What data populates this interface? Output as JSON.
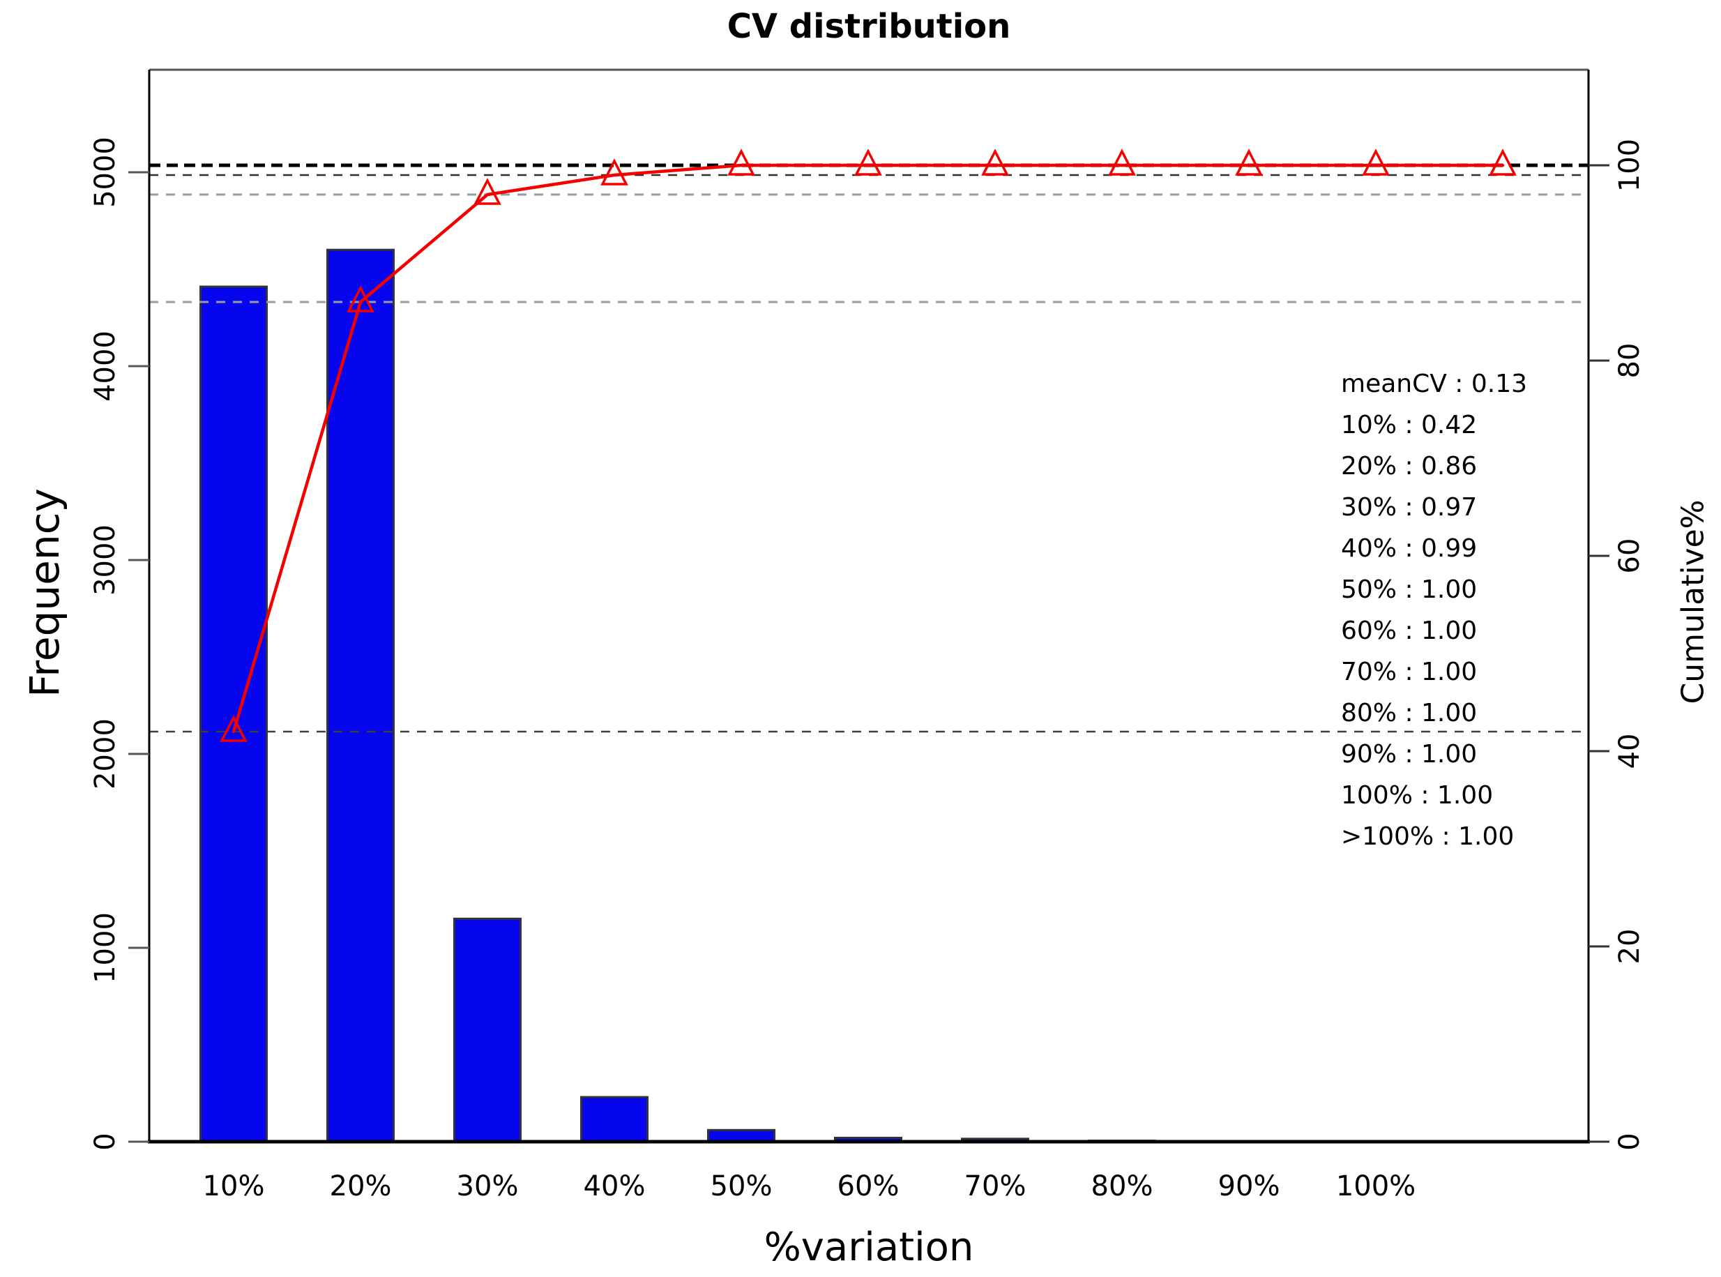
{
  "title": "CV distribution",
  "axes": {
    "x": {
      "label": "%variation",
      "tick_labels": [
        "10%",
        "20%",
        "30%",
        "40%",
        "50%",
        "60%",
        "70%",
        "80%",
        "90%",
        "100%"
      ]
    },
    "y_left": {
      "label": "Frequency",
      "range": [
        0,
        5000
      ],
      "ticks": [
        "0",
        "1000",
        "2000",
        "3000",
        "4000",
        "5000"
      ]
    },
    "y_right": {
      "label": "Cumulative%",
      "range": [
        0,
        100
      ],
      "ticks": [
        "0",
        "20",
        "40",
        "60",
        "80",
        "100"
      ]
    }
  },
  "chart_data": {
    "type": "pareto (bar + cumulative line)",
    "categories": [
      "10%",
      "20%",
      "30%",
      "40%",
      "50%",
      "60%",
      "70%",
      "80%",
      "90%",
      "100%",
      ">100%"
    ],
    "series": [
      {
        "name": "Frequency",
        "type": "bar",
        "color": "#0505ee",
        "values": [
          4410,
          4600,
          1150,
          230,
          60,
          20,
          15,
          5,
          3,
          2,
          2
        ]
      },
      {
        "name": "Cumulative%",
        "type": "line",
        "color": "#f40000",
        "marker": "open-triangle-up",
        "values": [
          42,
          86,
          97,
          99,
          100,
          100,
          100,
          100,
          100,
          100,
          100
        ]
      }
    ],
    "reference_lines": [
      {
        "value": 100,
        "color": "#000000",
        "width": 5,
        "dash": "16,9"
      },
      {
        "value": 99,
        "color": "#2e2e2e",
        "width": 2.5,
        "dash": "13,11"
      },
      {
        "value": 97,
        "color": "#9b9b9b",
        "width": 3,
        "dash": "13,11"
      },
      {
        "value": 86,
        "color": "#9b9b9b",
        "width": 3,
        "dash": "13,11"
      },
      {
        "value": 42,
        "color": "#3d3d3d",
        "width": 2.5,
        "dash": "13,11"
      }
    ],
    "legend_position": "right-middle",
    "grid": false,
    "title": "CV distribution",
    "xlabel": "%variation",
    "ylabel_left": "Frequency",
    "ylabel_right": "Cumulative%"
  },
  "annotation": {
    "lines": [
      "meanCV : 0.13",
      "10% : 0.42",
      "20% : 0.86",
      "30% : 0.97",
      "40% : 0.99",
      "50% : 1.00",
      "60% : 1.00",
      "70% : 1.00",
      "80% : 1.00",
      "90% : 1.00",
      "100% : 1.00",
      ">100% : 1.00"
    ]
  },
  "colors": {
    "bar_fill": "#0505ee",
    "bar_border": "#333333",
    "line": "#f40000",
    "axis": "#000000",
    "box_top": "#555555",
    "tick": "#555555",
    "background": "#ffffff"
  }
}
